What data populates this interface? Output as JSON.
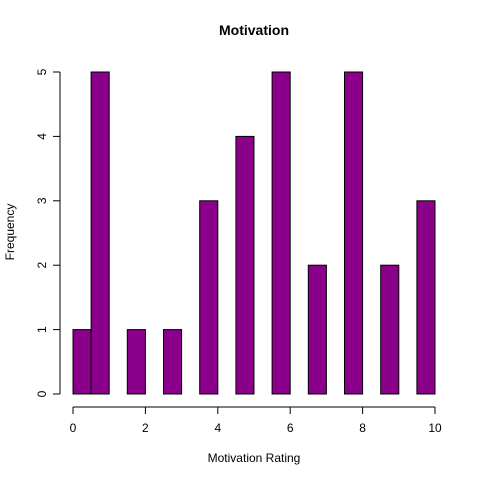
{
  "chart_data": {
    "type": "bar",
    "title": "Motivation",
    "xlabel": "Motivation Rating",
    "ylabel": "Frequency",
    "bins": [
      {
        "x0": 0.0,
        "x1": 0.5,
        "value": 1
      },
      {
        "x0": 0.5,
        "x1": 1.0,
        "value": 5
      },
      {
        "x0": 1.5,
        "x1": 2.0,
        "value": 1
      },
      {
        "x0": 2.5,
        "x1": 3.0,
        "value": 1
      },
      {
        "x0": 3.5,
        "x1": 4.0,
        "value": 3
      },
      {
        "x0": 4.5,
        "x1": 5.0,
        "value": 4
      },
      {
        "x0": 5.5,
        "x1": 6.0,
        "value": 5
      },
      {
        "x0": 6.5,
        "x1": 7.0,
        "value": 2
      },
      {
        "x0": 7.5,
        "x1": 8.0,
        "value": 5
      },
      {
        "x0": 8.5,
        "x1": 9.0,
        "value": 2
      },
      {
        "x0": 9.5,
        "x1": 10.0,
        "value": 3
      }
    ],
    "xlim": [
      0,
      10
    ],
    "ylim": [
      0,
      5
    ],
    "xticks": [
      0,
      2,
      4,
      6,
      8,
      10
    ],
    "yticks": [
      0,
      1,
      2,
      3,
      4,
      5
    ],
    "bar_color": "#8B008B",
    "grid": false,
    "legend": "none"
  }
}
